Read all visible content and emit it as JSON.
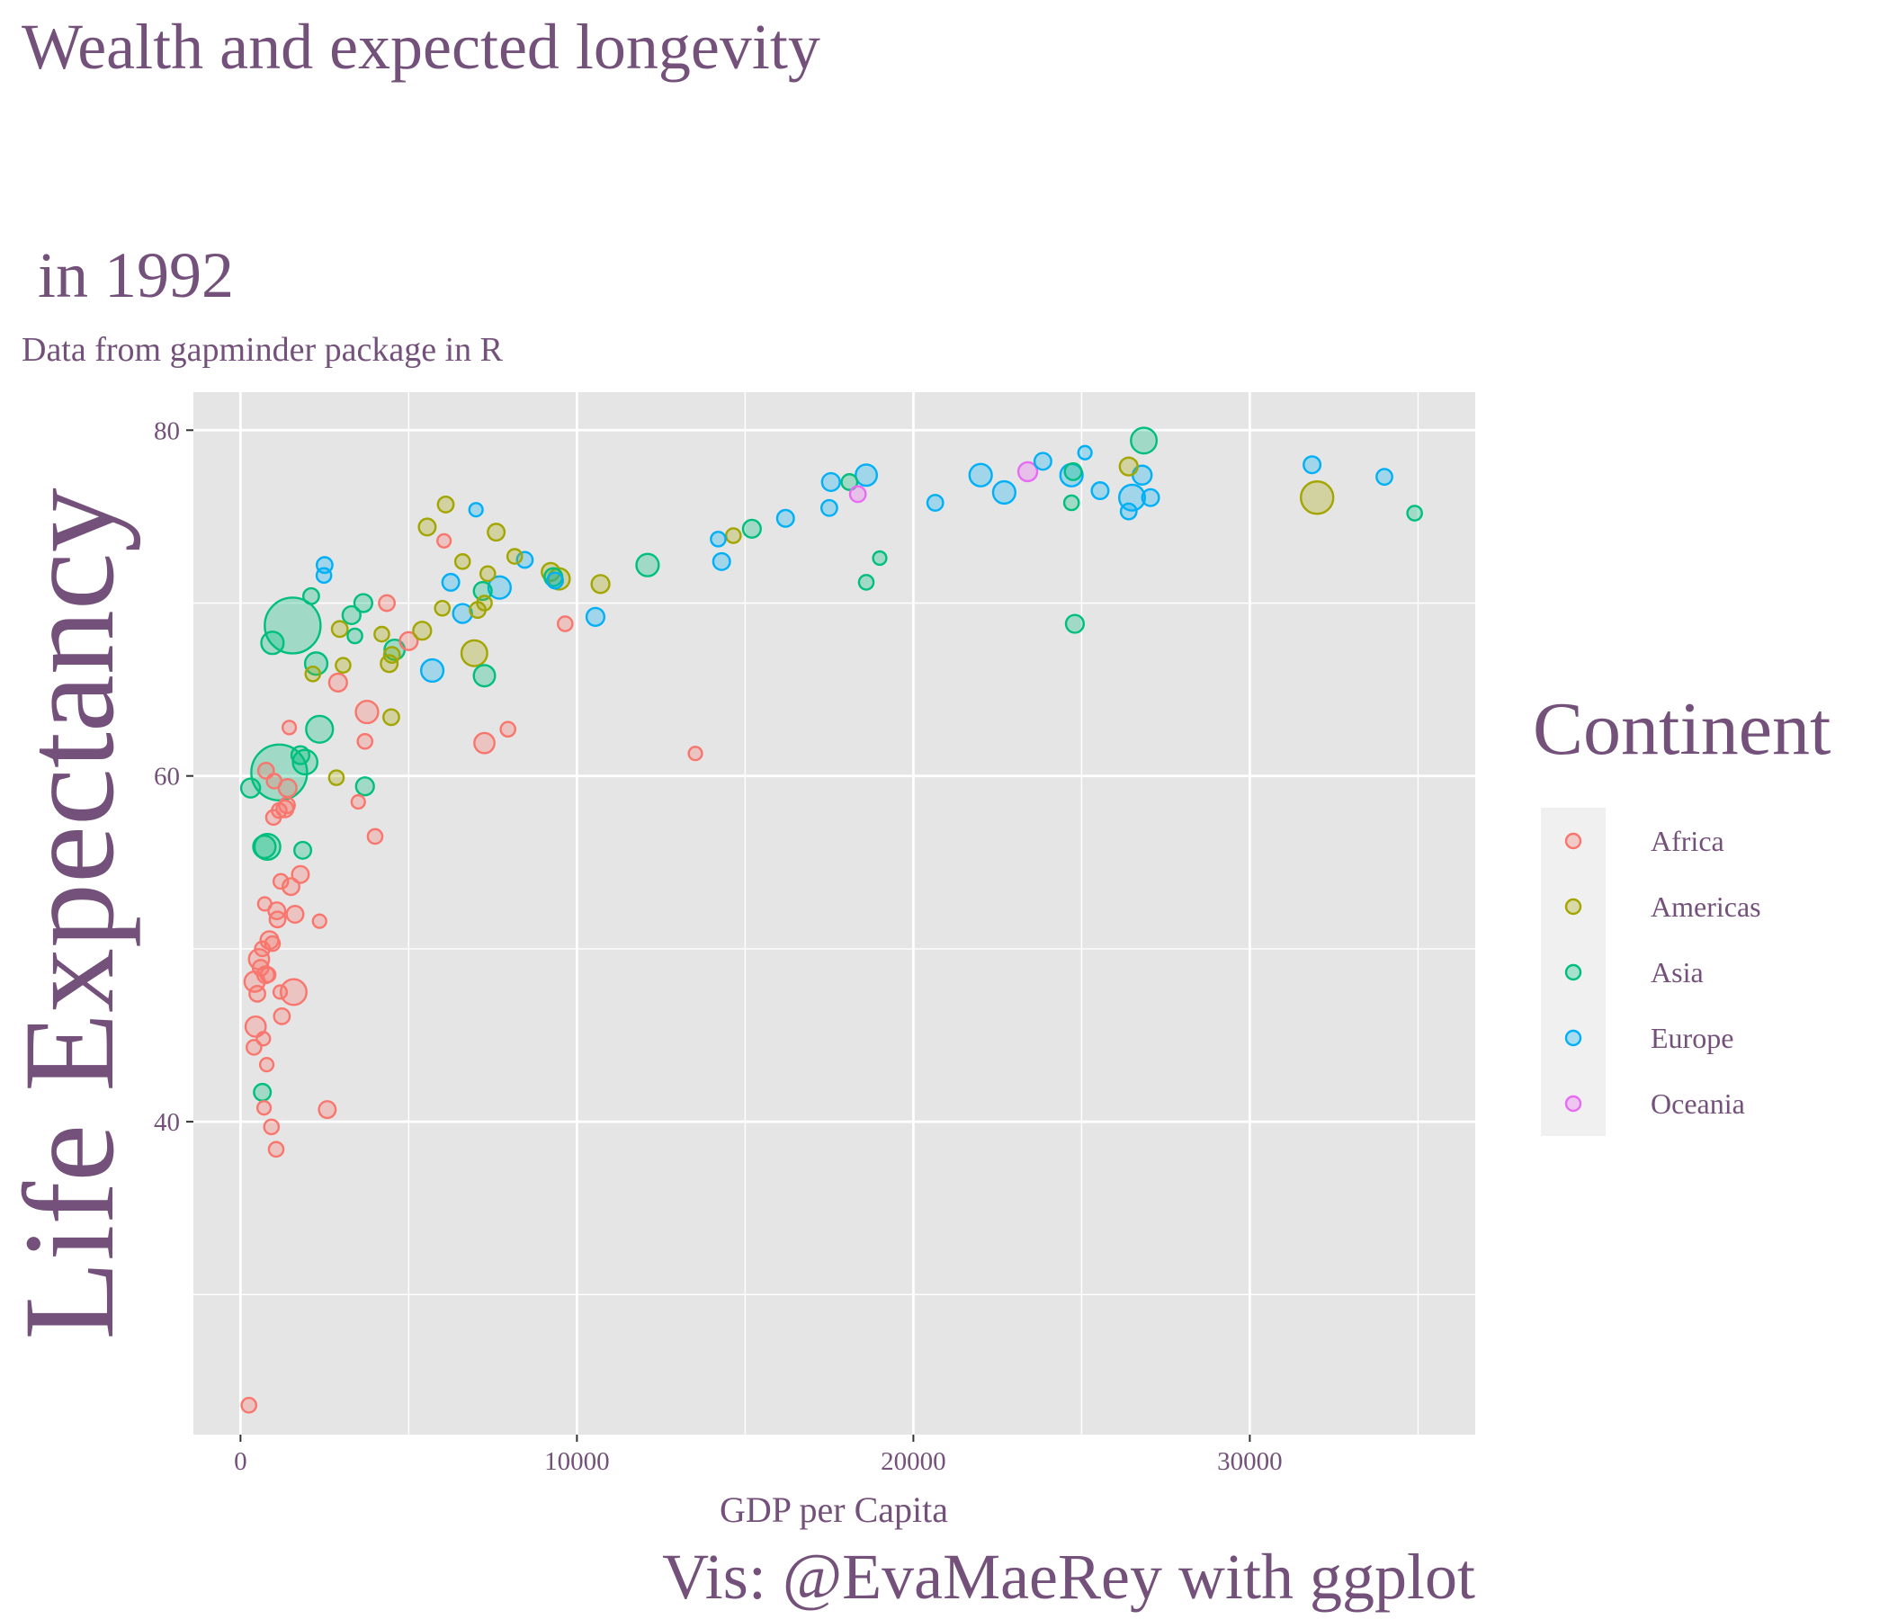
{
  "colors": {
    "text": "#74517a",
    "panel": "#e5e5e5",
    "grid": "#ffffff",
    "legend_key_bg": "#f0f0f0",
    "tick": "#333333"
  },
  "chart_data": {
    "type": "scatter",
    "title_line1": "Wealth and expected longevity",
    "title_line2": " in 1992",
    "subtitle": "Data from gapminder package in R",
    "xlabel": "GDP per Capita",
    "ylabel": "Life Expectancy",
    "caption": "Vis: @EvaMaeRey with ggplot",
    "xlim": [
      -1400,
      36700
    ],
    "ylim": [
      21.9,
      82.2
    ],
    "x_ticks": [
      0,
      10000,
      20000,
      30000
    ],
    "x_tick_labels": [
      "0",
      "10000",
      "20000",
      "30000"
    ],
    "y_ticks": [
      40,
      60,
      80
    ],
    "y_tick_labels": [
      "40",
      "60",
      "80"
    ],
    "grid": true,
    "legend": {
      "title": "Continent",
      "placement": "right",
      "entries": [
        "Africa",
        "Americas",
        "Asia",
        "Europe",
        "Oceania"
      ]
    },
    "size_by": "population",
    "series": [
      {
        "name": "Africa",
        "color": "#F8766D",
        "points": [
          [
            250,
            23.6,
            1.3
          ],
          [
            400,
            44.3,
            1.3
          ],
          [
            450,
            45.5,
            1.8
          ],
          [
            420,
            48.1,
            1.8
          ],
          [
            500,
            47.4,
            1.4
          ],
          [
            550,
            49.4,
            1.8
          ],
          [
            600,
            48.9,
            1.4
          ],
          [
            650,
            50.0,
            1.3
          ],
          [
            680,
            44.8,
            1.2
          ],
          [
            700,
            40.8,
            1.2
          ],
          [
            720,
            52.6,
            1.2
          ],
          [
            750,
            48.5,
            1.5
          ],
          [
            760,
            60.3,
            1.4
          ],
          [
            780,
            43.3,
            1.2
          ],
          [
            820,
            48.5,
            1.3
          ],
          [
            860,
            50.5,
            1.6
          ],
          [
            920,
            39.7,
            1.3
          ],
          [
            950,
            50.3,
            1.3
          ],
          [
            980,
            57.6,
            1.3
          ],
          [
            1000,
            59.7,
            1.3
          ],
          [
            1060,
            38.4,
            1.3
          ],
          [
            1080,
            52.2,
            1.5
          ],
          [
            1100,
            51.7,
            1.4
          ],
          [
            1150,
            58.0,
            1.3
          ],
          [
            1180,
            47.5,
            1.2
          ],
          [
            1200,
            53.9,
            1.3
          ],
          [
            1230,
            46.1,
            1.4
          ],
          [
            1320,
            58.1,
            1.5
          ],
          [
            1380,
            58.3,
            1.4
          ],
          [
            1400,
            59.3,
            1.6
          ],
          [
            1450,
            62.8,
            1.2
          ],
          [
            1500,
            53.6,
            1.5
          ],
          [
            1580,
            47.5,
            2.3
          ],
          [
            1620,
            52.0,
            1.5
          ],
          [
            1780,
            54.3,
            1.5
          ],
          [
            2350,
            51.6,
            1.2
          ],
          [
            2580,
            40.7,
            1.5
          ],
          [
            2900,
            65.4,
            1.6
          ],
          [
            3500,
            58.5,
            1.2
          ],
          [
            3700,
            62.0,
            1.3
          ],
          [
            3760,
            63.7,
            2.0
          ],
          [
            4000,
            56.5,
            1.3
          ],
          [
            4350,
            70.0,
            1.4
          ],
          [
            5000,
            67.8,
            1.6
          ],
          [
            6050,
            73.6,
            1.2
          ],
          [
            7250,
            61.9,
            1.8
          ],
          [
            7950,
            62.7,
            1.3
          ],
          [
            9650,
            68.8,
            1.3
          ],
          [
            13520,
            61.3,
            1.2
          ]
        ]
      },
      {
        "name": "Americas",
        "color": "#A3A500",
        "points": [
          [
            2150,
            65.9,
            1.3
          ],
          [
            2850,
            59.9,
            1.3
          ],
          [
            2950,
            68.5,
            1.4
          ],
          [
            3050,
            66.4,
            1.3
          ],
          [
            4200,
            68.2,
            1.3
          ],
          [
            4420,
            66.5,
            1.5
          ],
          [
            4480,
            63.4,
            1.4
          ],
          [
            4500,
            67.0,
            1.4
          ],
          [
            5400,
            68.4,
            1.6
          ],
          [
            5550,
            74.4,
            1.5
          ],
          [
            6000,
            69.7,
            1.3
          ],
          [
            6100,
            75.7,
            1.4
          ],
          [
            6600,
            72.4,
            1.3
          ],
          [
            6950,
            67.1,
            2.3
          ],
          [
            7050,
            69.6,
            1.4
          ],
          [
            7250,
            70.0,
            1.3
          ],
          [
            7350,
            71.7,
            1.3
          ],
          [
            7600,
            74.1,
            1.5
          ],
          [
            8150,
            72.7,
            1.3
          ],
          [
            9220,
            71.8,
            1.6
          ],
          [
            9470,
            71.4,
            1.9
          ],
          [
            10700,
            71.1,
            1.6
          ],
          [
            14650,
            73.9,
            1.3
          ],
          [
            26400,
            77.9,
            1.6
          ],
          [
            32000,
            76.1,
            2.9
          ]
        ]
      },
      {
        "name": "Asia",
        "color": "#00BF7D",
        "points": [
          [
            300,
            59.3,
            1.7
          ],
          [
            650,
            41.7,
            1.5
          ],
          [
            710,
            55.9,
            2.0
          ],
          [
            800,
            55.9,
            2.3
          ],
          [
            950,
            67.7,
            2.0
          ],
          [
            1150,
            60.2,
            5.0
          ],
          [
            1550,
            68.7,
            5.0
          ],
          [
            1780,
            61.2,
            1.6
          ],
          [
            1850,
            55.7,
            1.5
          ],
          [
            1920,
            60.8,
            2.2
          ],
          [
            2100,
            70.4,
            1.4
          ],
          [
            2250,
            66.5,
            2.0
          ],
          [
            2350,
            62.7,
            2.4
          ],
          [
            3300,
            69.3,
            1.6
          ],
          [
            3400,
            68.1,
            1.3
          ],
          [
            3650,
            70.0,
            1.6
          ],
          [
            3700,
            59.4,
            1.6
          ],
          [
            4580,
            67.3,
            1.8
          ],
          [
            7200,
            70.7,
            1.6
          ],
          [
            7250,
            65.8,
            1.9
          ],
          [
            9300,
            71.5,
            1.6
          ],
          [
            12100,
            72.2,
            2.0
          ],
          [
            15200,
            74.3,
            1.6
          ],
          [
            18100,
            77.0,
            1.4
          ],
          [
            18600,
            71.2,
            1.3
          ],
          [
            19000,
            72.6,
            1.2
          ],
          [
            24700,
            75.8,
            1.3
          ],
          [
            24750,
            77.6,
            1.5
          ],
          [
            24800,
            68.8,
            1.6
          ],
          [
            26850,
            79.4,
            2.3
          ],
          [
            34900,
            75.2,
            1.3
          ]
        ]
      },
      {
        "name": "Europe",
        "color": "#00B0F6",
        "points": [
          [
            2480,
            71.6,
            1.3
          ],
          [
            2500,
            72.2,
            1.4
          ],
          [
            5700,
            66.1,
            2.0
          ],
          [
            6250,
            71.2,
            1.5
          ],
          [
            6600,
            69.4,
            1.7
          ],
          [
            7000,
            75.4,
            1.2
          ],
          [
            7700,
            70.9,
            2.0
          ],
          [
            8450,
            72.5,
            1.4
          ],
          [
            9350,
            71.3,
            1.4
          ],
          [
            10550,
            69.2,
            1.6
          ],
          [
            14200,
            73.7,
            1.3
          ],
          [
            14300,
            72.4,
            1.5
          ],
          [
            16200,
            74.9,
            1.5
          ],
          [
            17500,
            75.5,
            1.4
          ],
          [
            17550,
            77.0,
            1.6
          ],
          [
            18600,
            77.4,
            1.9
          ],
          [
            20650,
            75.8,
            1.4
          ],
          [
            22000,
            77.4,
            2.0
          ],
          [
            22700,
            76.4,
            2.0
          ],
          [
            23850,
            78.2,
            1.5
          ],
          [
            24700,
            77.4,
            2.0
          ],
          [
            25100,
            78.7,
            1.2
          ],
          [
            25550,
            76.5,
            1.5
          ],
          [
            26400,
            75.3,
            1.4
          ],
          [
            26500,
            76.1,
            2.3
          ],
          [
            26800,
            77.4,
            1.7
          ],
          [
            27050,
            76.1,
            1.5
          ],
          [
            31850,
            78.0,
            1.5
          ],
          [
            34000,
            77.3,
            1.4
          ]
        ]
      },
      {
        "name": "Oceania",
        "color": "#E76BF3",
        "points": [
          [
            18350,
            76.3,
            1.4
          ],
          [
            23400,
            77.6,
            1.7
          ]
        ]
      }
    ]
  }
}
